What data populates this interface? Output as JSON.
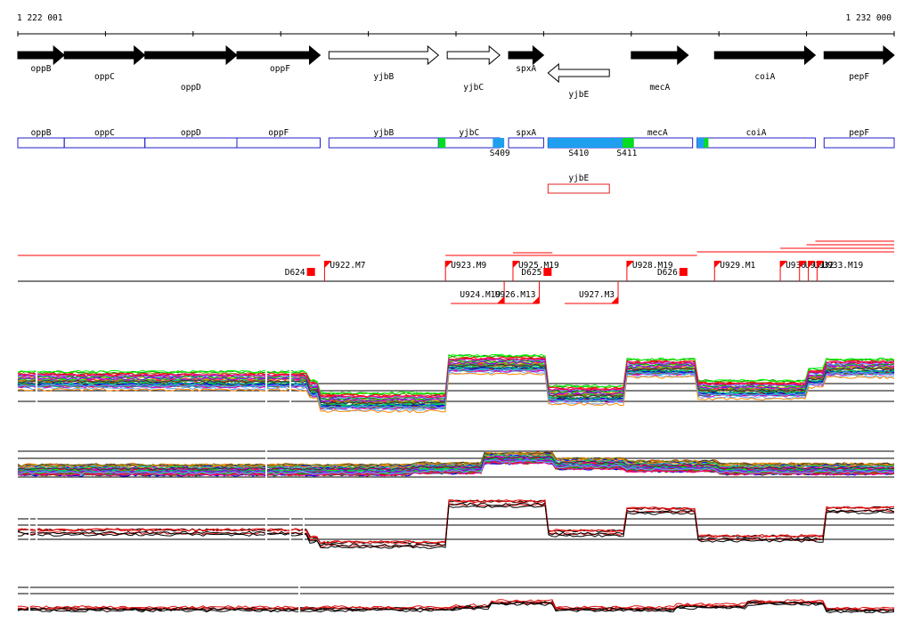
{
  "coordinates": {
    "start": "1 222 001",
    "end": "1 232 000"
  },
  "colors": {
    "solid_gene": "#000000",
    "segment_outline": "#2020c8",
    "highlight_blue": "#1ea0ef",
    "highlight_green": "#00dd22",
    "novel_outline": "#e02020",
    "marker": "#ff0000",
    "track_red": "#e01010",
    "track_black": "#000000"
  },
  "genes": [
    {
      "label": "oppB",
      "kb_start": 0.0,
      "kb_end": 0.53,
      "strand": "+",
      "style": "solid",
      "label_row": 0
    },
    {
      "label": "oppC",
      "kb_start": 0.53,
      "kb_end": 1.45,
      "strand": "+",
      "style": "solid",
      "label_row": 1
    },
    {
      "label": "oppD",
      "kb_start": 1.45,
      "kb_end": 2.5,
      "strand": "+",
      "style": "solid",
      "label_row": 2
    },
    {
      "label": "oppF",
      "kb_start": 2.5,
      "kb_end": 3.45,
      "strand": "+",
      "style": "solid",
      "label_row": 0
    },
    {
      "label": "yjbB",
      "kb_start": 3.55,
      "kb_end": 4.8,
      "strand": "+",
      "style": "open",
      "label_row": 1
    },
    {
      "label": "yjbC",
      "kb_start": 4.9,
      "kb_end": 5.5,
      "strand": "+",
      "style": "open",
      "label_row": 2
    },
    {
      "label": "spxA",
      "kb_start": 5.6,
      "kb_end": 6.0,
      "strand": "+",
      "style": "solid",
      "label_row": 0
    },
    {
      "label": "yjbE",
      "kb_start": 6.05,
      "kb_end": 6.75,
      "strand": "-",
      "style": "open",
      "label_row": 3
    },
    {
      "label": "mecA",
      "kb_start": 7.0,
      "kb_end": 7.65,
      "strand": "+",
      "style": "solid",
      "label_row": 2
    },
    {
      "label": "coiA",
      "kb_start": 7.95,
      "kb_end": 9.1,
      "strand": "+",
      "style": "solid",
      "label_row": 1
    },
    {
      "label": "pepF",
      "kb_start": 9.2,
      "kb_end": 10.0,
      "strand": "+",
      "style": "solid",
      "label_row": 1
    }
  ],
  "segments": [
    {
      "label": "oppB",
      "kb_start": 0.0,
      "kb_end": 0.53
    },
    {
      "label": "oppC",
      "kb_start": 0.53,
      "kb_end": 1.45
    },
    {
      "label": "oppD",
      "kb_start": 1.45,
      "kb_end": 2.5
    },
    {
      "label": "oppF",
      "kb_start": 2.5,
      "kb_end": 3.45
    },
    {
      "label": "yjbB",
      "kb_start": 3.55,
      "kb_end": 4.8
    },
    {
      "label": "yjbC",
      "kb_start": 4.8,
      "kb_end": 5.5
    },
    {
      "label": "spxA",
      "kb_start": 5.6,
      "kb_end": 6.0
    },
    {
      "label": "",
      "kb_start": 6.05,
      "kb_end": 6.9
    },
    {
      "label": "mecA",
      "kb_start": 6.9,
      "kb_end": 7.7
    },
    {
      "label": "coiA",
      "kb_start": 7.75,
      "kb_end": 9.1
    },
    {
      "label": "pepF",
      "kb_start": 9.2,
      "kb_end": 10.0
    }
  ],
  "highlights": [
    {
      "color": "green",
      "kb_start": 4.8,
      "kb_end": 4.88
    },
    {
      "color": "blue",
      "kb_start": 5.42,
      "kb_end": 5.55
    },
    {
      "color": "blue",
      "kb_start": 6.05,
      "kb_end": 6.9
    },
    {
      "color": "green",
      "kb_start": 6.9,
      "kb_end": 7.03
    },
    {
      "color": "blue",
      "kb_start": 7.75,
      "kb_end": 7.83
    },
    {
      "color": "green",
      "kb_start": 7.83,
      "kb_end": 7.88
    }
  ],
  "segment_labels": [
    {
      "text": "S409",
      "kb": 5.5
    },
    {
      "text": "S410",
      "kb": 6.4
    },
    {
      "text": "S411",
      "kb": 6.95
    }
  ],
  "novel_transcripts": [
    {
      "label": "yjbE",
      "kb_start": 6.05,
      "kb_end": 6.75
    }
  ],
  "upper_markers": [
    {
      "label": "D624",
      "kb": 3.35,
      "type": "D"
    },
    {
      "label": "U922.M7",
      "kb": 3.5,
      "type": "U"
    },
    {
      "label": "U923.M9",
      "kb": 4.88,
      "type": "U"
    },
    {
      "label": "U925.M19",
      "kb": 5.65,
      "type": "U"
    },
    {
      "label": "D625",
      "kb": 6.05,
      "type": "D"
    },
    {
      "label": "U928.M19",
      "kb": 6.95,
      "type": "U"
    },
    {
      "label": "D626",
      "kb": 7.6,
      "type": "D"
    },
    {
      "label": "U929.M1",
      "kb": 7.95,
      "type": "U"
    },
    {
      "label": "U930",
      "kb": 8.7,
      "type": "U"
    },
    {
      "label": "U931",
      "kb": 8.92,
      "type": "U"
    },
    {
      "label": "U932",
      "kb": 9.02,
      "type": "U"
    },
    {
      "label": "U933.M19",
      "kb": 9.12,
      "type": "U"
    }
  ],
  "lower_markers": [
    {
      "label": "U924.M19",
      "kb": 5.55
    },
    {
      "label": "U926.M13",
      "kb": 5.95
    },
    {
      "label": "U927.M3",
      "kb": 6.85
    }
  ]
}
